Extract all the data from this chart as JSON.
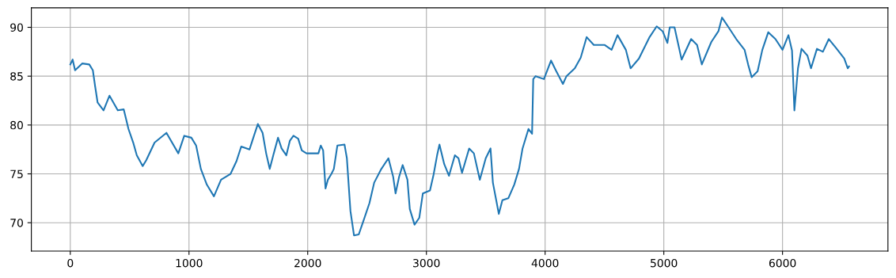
{
  "chart_data": {
    "type": "line",
    "grid": true,
    "xlim": [
      -328,
      6888
    ],
    "ylim": [
      67.1,
      92.0
    ],
    "xticks": [
      0,
      1000,
      2000,
      3000,
      4000,
      5000,
      6000
    ],
    "yticks": [
      70,
      75,
      80,
      85,
      90
    ],
    "x": [
      0,
      20,
      40,
      100,
      160,
      190,
      210,
      230,
      280,
      330,
      400,
      450,
      490,
      530,
      560,
      610,
      640,
      710,
      810,
      910,
      960,
      1020,
      1060,
      1100,
      1150,
      1210,
      1270,
      1350,
      1400,
      1440,
      1510,
      1550,
      1580,
      1620,
      1650,
      1680,
      1710,
      1750,
      1780,
      1820,
      1850,
      1880,
      1920,
      1950,
      1990,
      2090,
      2110,
      2130,
      2150,
      2170,
      2200,
      2220,
      2250,
      2310,
      2330,
      2360,
      2390,
      2430,
      2470,
      2520,
      2560,
      2620,
      2680,
      2720,
      2740,
      2770,
      2800,
      2840,
      2860,
      2900,
      2940,
      2970,
      3030,
      3060,
      3090,
      3110,
      3150,
      3190,
      3240,
      3270,
      3300,
      3360,
      3400,
      3450,
      3500,
      3540,
      3560,
      3610,
      3640,
      3690,
      3740,
      3780,
      3810,
      3860,
      3890,
      3900,
      3920,
      3990,
      4050,
      4090,
      4150,
      4180,
      4250,
      4300,
      4350,
      4410,
      4500,
      4560,
      4610,
      4680,
      4720,
      4790,
      4880,
      4940,
      4990,
      5030,
      5050,
      5090,
      5150,
      5230,
      5280,
      5320,
      5400,
      5460,
      5490,
      5540,
      5610,
      5680,
      5710,
      5740,
      5790,
      5830,
      5880,
      5940,
      6000,
      6050,
      6080,
      6100,
      6130,
      6160,
      6210,
      6240,
      6290,
      6340,
      6390,
      6450,
      6520,
      6550,
      6560
    ],
    "series": [
      {
        "color": "#1f77b4",
        "values": [
          86.2,
          86.7,
          85.6,
          86.3,
          86.2,
          85.6,
          83.9,
          82.3,
          81.5,
          83.0,
          81.5,
          81.6,
          79.6,
          78.2,
          76.9,
          75.8,
          76.4,
          78.2,
          79.2,
          77.1,
          78.9,
          78.7,
          77.9,
          75.5,
          73.9,
          72.7,
          74.4,
          75.0,
          76.3,
          77.8,
          77.5,
          79.0,
          80.1,
          79.2,
          77.1,
          75.5,
          76.9,
          78.7,
          77.6,
          76.9,
          78.4,
          78.9,
          78.6,
          77.4,
          77.1,
          77.1,
          77.9,
          77.4,
          73.5,
          74.4,
          75.0,
          75.5,
          77.9,
          78.0,
          76.6,
          71.2,
          68.7,
          68.8,
          70.2,
          72.0,
          74.1,
          75.5,
          76.6,
          74.7,
          73.0,
          74.7,
          75.9,
          74.4,
          71.4,
          69.8,
          70.5,
          73.0,
          73.3,
          74.9,
          76.9,
          78.0,
          76.0,
          74.8,
          76.9,
          76.6,
          75.1,
          77.6,
          77.1,
          74.4,
          76.6,
          77.6,
          74.1,
          70.9,
          72.3,
          72.5,
          73.9,
          75.5,
          77.6,
          79.6,
          79.1,
          84.7,
          85.0,
          84.7,
          86.6,
          85.6,
          84.2,
          85.0,
          85.8,
          86.9,
          89.0,
          88.2,
          88.2,
          87.7,
          89.2,
          87.7,
          85.8,
          86.8,
          89.0,
          90.1,
          89.6,
          88.4,
          90.0,
          90.0,
          86.7,
          88.8,
          88.2,
          86.2,
          88.5,
          89.6,
          91.0,
          90.1,
          88.8,
          87.7,
          86.2,
          84.9,
          85.5,
          87.7,
          89.5,
          88.8,
          87.7,
          89.2,
          87.6,
          81.5,
          85.8,
          87.8,
          87.1,
          85.8,
          87.8,
          87.5,
          88.8,
          87.9,
          86.8,
          85.8,
          86.0
        ]
      }
    ]
  }
}
